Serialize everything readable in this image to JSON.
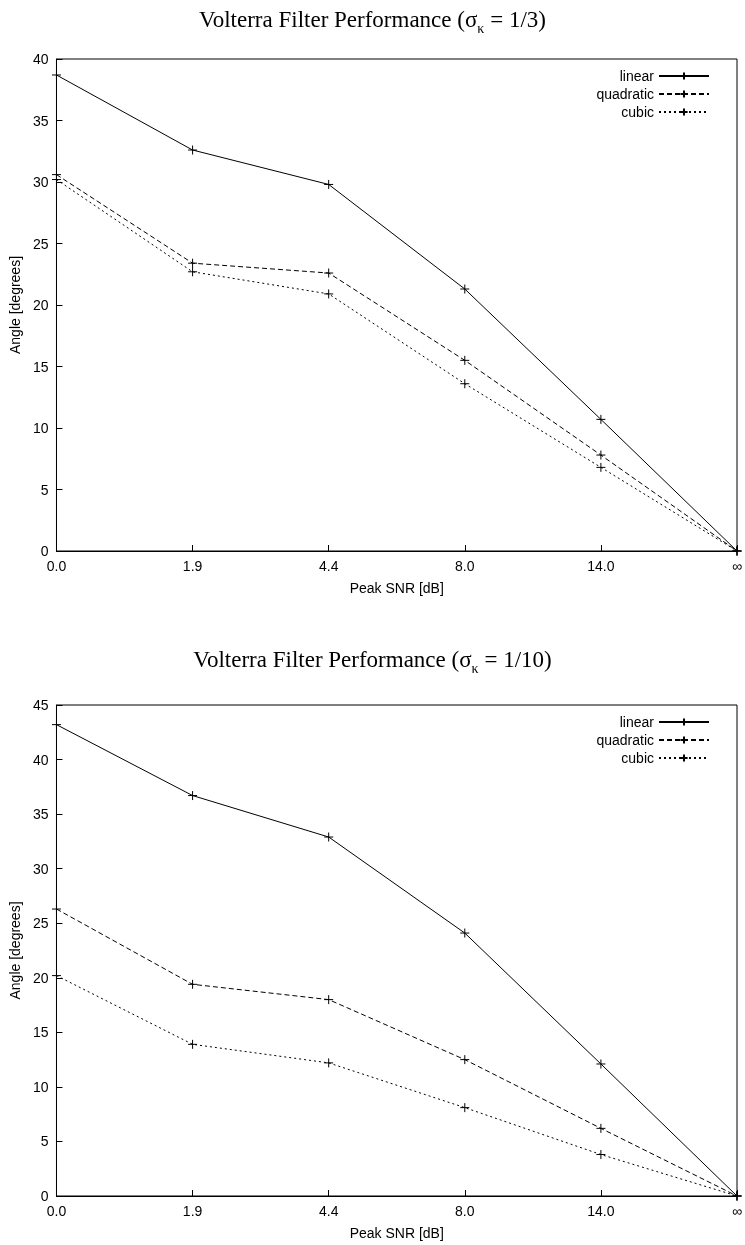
{
  "chart_data": [
    {
      "type": "line",
      "title": "Volterra Filter Performance (σ$_{κ}$ = 1/3)",
      "xlabel": "Peak SNR [dB]",
      "ylabel": "Angle [degrees]",
      "categories": [
        "0.0",
        "1.9",
        "4.4",
        "8.0",
        "14.0",
        "∞"
      ],
      "series": [
        {
          "name": "linear",
          "color": "#000000",
          "marker": "cross",
          "line_style": "solid",
          "values": [
            38.7,
            32.6,
            29.8,
            21.3,
            10.7,
            0
          ]
        },
        {
          "name": "quadratic",
          "color": "#000000",
          "marker": "cross",
          "line_style": "dashed",
          "values": [
            30.6,
            23.4,
            22.6,
            15.5,
            7.8,
            0
          ]
        },
        {
          "name": "cubic",
          "color": "#000000",
          "marker": "cross",
          "line_style": "dotted",
          "values": [
            30.2,
            22.7,
            20.9,
            13.6,
            6.8,
            0
          ]
        }
      ],
      "ylim": [
        0,
        40
      ],
      "yticks": [
        0,
        5,
        10,
        15,
        20,
        25,
        30,
        35,
        40
      ],
      "grid": false,
      "legend": "top right"
    },
    {
      "type": "line",
      "title": "Volterra Filter Performance (σ$_{κ}$ = 1/10)",
      "xlabel": "Peak SNR [dB]",
      "ylabel": "Angle [degrees]",
      "categories": [
        "0.0",
        "1.9",
        "4.4",
        "8.0",
        "14.0",
        "∞"
      ],
      "series": [
        {
          "name": "linear",
          "color": "#000000",
          "marker": "cross",
          "line_style": "solid",
          "values": [
            43.2,
            36.7,
            32.9,
            24.1,
            12.1,
            0
          ]
        },
        {
          "name": "quadratic",
          "color": "#000000",
          "marker": "cross",
          "line_style": "dashed",
          "values": [
            26.3,
            19.4,
            18.0,
            12.5,
            6.2,
            0
          ]
        },
        {
          "name": "cubic",
          "color": "#000000",
          "marker": "cross",
          "line_style": "dotted",
          "values": [
            20.2,
            13.9,
            12.2,
            8.1,
            3.8,
            0
          ]
        }
      ],
      "ylim": [
        0,
        45
      ],
      "yticks": [
        0,
        5,
        10,
        15,
        20,
        25,
        30,
        35,
        40,
        45
      ],
      "grid": false,
      "legend": "top right"
    }
  ]
}
